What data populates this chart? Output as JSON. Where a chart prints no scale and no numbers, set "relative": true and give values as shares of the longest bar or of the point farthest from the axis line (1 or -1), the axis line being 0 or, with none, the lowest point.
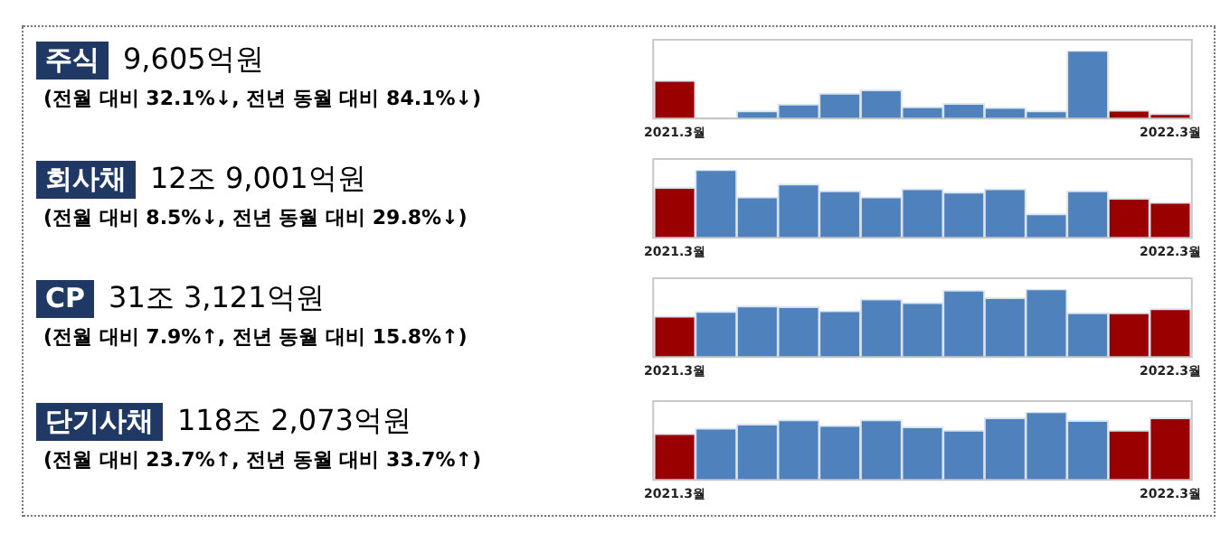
{
  "chart_data": [
    {
      "type": "other",
      "title": "주식",
      "subtitle": "9,605억원",
      "annotations": [
        "(전월 대비 32.1%↓, 전년 동월 대비 84.1%↓)"
      ]
    },
    {
      "type": "bar",
      "relative": true,
      "grid": false,
      "legend": false,
      "categories": [
        "2021.3월",
        null,
        null,
        null,
        null,
        null,
        null,
        null,
        null,
        null,
        null,
        null,
        "2022.3월"
      ],
      "values": [
        0.56,
        0,
        0.11,
        0.21,
        0.37,
        0.42,
        0.17,
        0.22,
        0.16,
        0.11,
        1,
        0.12,
        0.07
      ],
      "colors": [
        "#9b0000",
        "#4f81bd",
        "#4f81bd",
        "#4f81bd",
        "#4f81bd",
        "#4f81bd",
        "#4f81bd",
        "#4f81bd",
        "#4f81bd",
        "#4f81bd",
        "#4f81bd",
        "#9b0000",
        "#9b0000"
      ]
    },
    {
      "type": "other",
      "title": "회사채",
      "subtitle": "12조 9,001억원",
      "annotations": [
        "(전월 대비 8.5%↓, 전년 동월 대비 29.8%↓)"
      ]
    },
    {
      "type": "bar",
      "relative": true,
      "grid": false,
      "legend": false,
      "categories": [
        "2021.3월",
        null,
        null,
        null,
        null,
        null,
        null,
        null,
        null,
        null,
        null,
        null,
        "2022.3월"
      ],
      "values": [
        0.74,
        1,
        0.6,
        0.79,
        0.69,
        0.6,
        0.72,
        0.67,
        0.72,
        0.35,
        0.69,
        0.58,
        0.52
      ],
      "colors": [
        "#9b0000",
        "#4f81bd",
        "#4f81bd",
        "#4f81bd",
        "#4f81bd",
        "#4f81bd",
        "#4f81bd",
        "#4f81bd",
        "#4f81bd",
        "#4f81bd",
        "#4f81bd",
        "#9b0000",
        "#9b0000"
      ]
    },
    {
      "type": "other",
      "title": "CP",
      "subtitle": "31조 3,121억원",
      "annotations": [
        "(전월 대비 7.9%↑, 전년 동월 대비 15.8%↑)"
      ]
    },
    {
      "type": "bar",
      "relative": true,
      "grid": false,
      "legend": false,
      "categories": [
        "2021.3월",
        null,
        null,
        null,
        null,
        null,
        null,
        null,
        null,
        null,
        null,
        null,
        "2022.3월"
      ],
      "values": [
        0.6,
        0.67,
        0.75,
        0.74,
        0.68,
        0.85,
        0.8,
        0.98,
        0.87,
        1,
        0.65,
        0.65,
        0.71
      ],
      "colors": [
        "#9b0000",
        "#4f81bd",
        "#4f81bd",
        "#4f81bd",
        "#4f81bd",
        "#4f81bd",
        "#4f81bd",
        "#4f81bd",
        "#4f81bd",
        "#4f81bd",
        "#4f81bd",
        "#9b0000",
        "#9b0000"
      ]
    },
    {
      "type": "other",
      "title": "단기사채",
      "subtitle": "118조 2,073억원",
      "annotations": [
        "(전월 대비 23.7%↑, 전년 동월 대비 33.7%↑)"
      ]
    },
    {
      "type": "bar",
      "relative": true,
      "grid": false,
      "legend": false,
      "categories": [
        "2021.3월",
        null,
        null,
        null,
        null,
        null,
        null,
        null,
        null,
        null,
        null,
        null,
        "2022.3월"
      ],
      "values": [
        0.68,
        0.76,
        0.82,
        0.88,
        0.8,
        0.88,
        0.78,
        0.73,
        0.91,
        1,
        0.87,
        0.73,
        0.91
      ],
      "colors": [
        "#9b0000",
        "#4f81bd",
        "#4f81bd",
        "#4f81bd",
        "#4f81bd",
        "#4f81bd",
        "#4f81bd",
        "#4f81bd",
        "#4f81bd",
        "#4f81bd",
        "#4f81bd",
        "#9b0000",
        "#9b0000"
      ]
    }
  ]
}
